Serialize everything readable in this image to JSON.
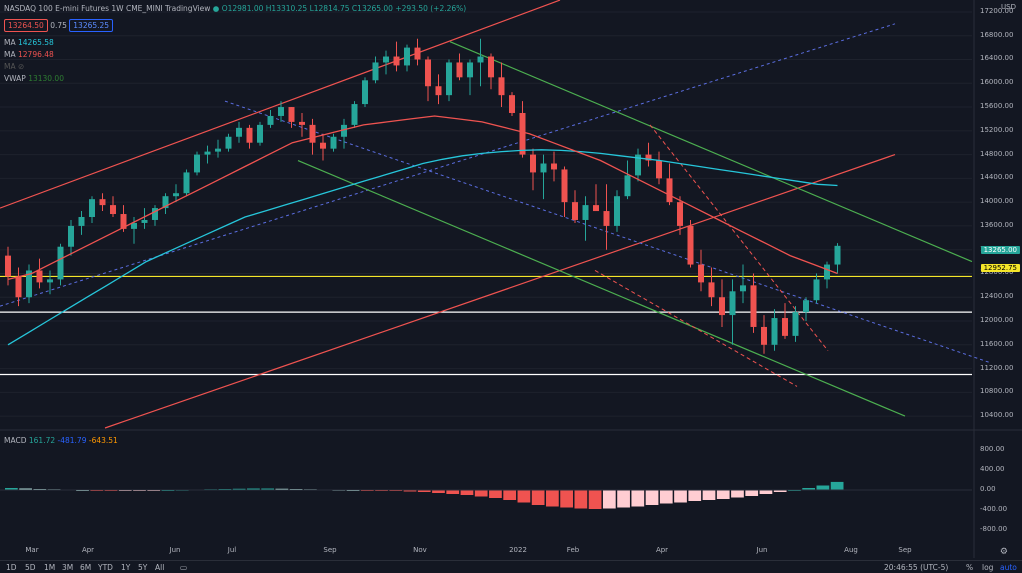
{
  "header": {
    "symbol": "NASDAQ 100 E-mini Futures",
    "interval": "1W",
    "exchange": "CME_MINI",
    "source": "TradingView",
    "ohlc": "O12981.00 H13310.25 L12814.75 C13265.00 +293.50 (+2.26%)",
    "bid": "13264.50",
    "spread": "0.75",
    "ask": "13265.25",
    "currency": "USD"
  },
  "indicators": [
    {
      "name": "MA",
      "value": "14265.58",
      "color": "#26c6da"
    },
    {
      "name": "MA",
      "value": "12796.48",
      "color": "#ef5350"
    },
    {
      "name": "MA",
      "value": "",
      "color": "#555"
    },
    {
      "name": "VWAP",
      "value": "13130.00",
      "color": "#4caf50"
    }
  ],
  "macd": {
    "label": "MACD",
    "v1": "161.72",
    "v2": "-481.79",
    "v3": "-643.51"
  },
  "price_axis": [
    "17200.00",
    "16800.00",
    "16400.00",
    "16000.00",
    "15600.00",
    "15200.00",
    "14800.00",
    "14400.00",
    "14000.00",
    "13600.00",
    "13200.00",
    "12800.00",
    "12400.00",
    "12000.00",
    "11600.00",
    "11200.00",
    "10800.00",
    "10400.00"
  ],
  "macd_axis": [
    "800.00",
    "400.00",
    "0.00",
    "-400.00",
    "-800.00"
  ],
  "price_tags": {
    "last": "13265.00",
    "level": "12952.75"
  },
  "time_axis": [
    "Mar",
    "Apr",
    "Jun",
    "Jul",
    "Sep",
    "Nov",
    "2022",
    "Feb",
    "Apr",
    "Jun",
    "Aug",
    "Sep"
  ],
  "toolbar": {
    "timeframes": [
      "1D",
      "5D",
      "1M",
      "3M",
      "6M",
      "YTD",
      "1Y",
      "5Y",
      "All"
    ],
    "clock": "20:46:55 (UTC-5)",
    "percent": "%",
    "log": "log",
    "auto": "auto"
  },
  "colors": {
    "up": "#26a69a",
    "down": "#ef5350",
    "bg": "#131722",
    "grid": "#1e222d"
  },
  "chart_data": {
    "type": "candlestick",
    "series": [
      {
        "name": "candles",
        "values": [
          [
            13100,
            13250,
            12600,
            12750
          ],
          [
            12750,
            12900,
            12250,
            12400
          ],
          [
            12400,
            12950,
            12300,
            12850
          ],
          [
            12850,
            13050,
            12550,
            12650
          ],
          [
            12650,
            12850,
            12450,
            12700
          ],
          [
            12700,
            13300,
            12600,
            13250
          ],
          [
            13250,
            13700,
            13100,
            13600
          ],
          [
            13600,
            13850,
            13450,
            13750
          ],
          [
            13750,
            14100,
            13650,
            14050
          ],
          [
            14050,
            14150,
            13850,
            13950
          ],
          [
            13950,
            14100,
            13750,
            13800
          ],
          [
            13800,
            13950,
            13500,
            13550
          ],
          [
            13550,
            13750,
            13300,
            13650
          ],
          [
            13650,
            13900,
            13550,
            13700
          ],
          [
            13700,
            13950,
            13600,
            13900
          ],
          [
            13900,
            14150,
            13800,
            14100
          ],
          [
            14100,
            14300,
            14000,
            14150
          ],
          [
            14150,
            14550,
            14100,
            14500
          ],
          [
            14500,
            14850,
            14450,
            14800
          ],
          [
            14800,
            14950,
            14650,
            14850
          ],
          [
            14850,
            15050,
            14750,
            14900
          ],
          [
            14900,
            15150,
            14850,
            15100
          ],
          [
            15100,
            15350,
            15000,
            15250
          ],
          [
            15250,
            15300,
            14900,
            15000
          ],
          [
            15000,
            15350,
            14950,
            15300
          ],
          [
            15300,
            15550,
            15250,
            15450
          ],
          [
            15450,
            15700,
            15350,
            15600
          ],
          [
            15600,
            15600,
            15250,
            15350
          ],
          [
            15350,
            15500,
            15100,
            15300
          ],
          [
            15300,
            15400,
            14800,
            15000
          ],
          [
            15000,
            15150,
            14700,
            14900
          ],
          [
            14900,
            15150,
            14850,
            15100
          ],
          [
            15100,
            15400,
            14900,
            15300
          ],
          [
            15300,
            15700,
            15250,
            15650
          ],
          [
            15650,
            16100,
            15600,
            16050
          ],
          [
            16050,
            16450,
            16000,
            16350
          ],
          [
            16350,
            16550,
            16150,
            16450
          ],
          [
            16450,
            16700,
            16200,
            16300
          ],
          [
            16300,
            16650,
            16200,
            16600
          ],
          [
            16600,
            16750,
            16300,
            16400
          ],
          [
            16400,
            16450,
            15700,
            15950
          ],
          [
            15950,
            16150,
            15650,
            15800
          ],
          [
            15800,
            16400,
            15700,
            16350
          ],
          [
            16350,
            16500,
            16050,
            16100
          ],
          [
            16100,
            16400,
            15800,
            16350
          ],
          [
            16350,
            16750,
            15950,
            16450
          ],
          [
            16450,
            16500,
            15900,
            16100
          ],
          [
            16100,
            16350,
            15600,
            15800
          ],
          [
            15800,
            15850,
            15450,
            15500
          ],
          [
            15500,
            15700,
            14750,
            14800
          ],
          [
            14800,
            14900,
            14200,
            14500
          ],
          [
            14500,
            14800,
            14050,
            14650
          ],
          [
            14650,
            14850,
            14350,
            14550
          ],
          [
            14550,
            14600,
            13750,
            14000
          ],
          [
            14000,
            14200,
            13650,
            13700
          ],
          [
            13700,
            14100,
            13350,
            13950
          ],
          [
            13950,
            14300,
            13850,
            13850
          ],
          [
            13850,
            14300,
            13200,
            13600
          ],
          [
            13600,
            14200,
            13500,
            14100
          ],
          [
            14100,
            14700,
            14050,
            14450
          ],
          [
            14450,
            14900,
            14350,
            14800
          ],
          [
            14800,
            15000,
            14600,
            14700
          ],
          [
            14700,
            14850,
            14300,
            14400
          ],
          [
            14400,
            14650,
            13950,
            14000
          ],
          [
            14000,
            14100,
            13450,
            13600
          ],
          [
            13600,
            13700,
            12900,
            12950
          ],
          [
            12950,
            13200,
            12500,
            12650
          ],
          [
            12650,
            12900,
            12250,
            12400
          ],
          [
            12400,
            12700,
            11900,
            12100
          ],
          [
            12100,
            12700,
            11600,
            12500
          ],
          [
            12500,
            12950,
            12300,
            12600
          ],
          [
            12600,
            12800,
            11800,
            11900
          ],
          [
            11900,
            12100,
            11450,
            11600
          ],
          [
            11600,
            12200,
            11500,
            12050
          ],
          [
            12050,
            12300,
            11700,
            11750
          ],
          [
            11750,
            12250,
            11650,
            12150
          ],
          [
            12150,
            12400,
            12000,
            12350
          ],
          [
            12350,
            12800,
            12300,
            12700
          ],
          [
            12700,
            13000,
            12550,
            12950
          ],
          [
            12950,
            13310,
            12800,
            13265
          ]
        ]
      },
      {
        "name": "MA 14265.58",
        "values": [
          11600,
          11800,
          12000,
          12200,
          12400,
          12600,
          12800,
          13000,
          13150,
          13300,
          13450,
          13600,
          13750,
          13850,
          13950,
          14050,
          14150,
          14250,
          14350,
          14450,
          14550,
          14650,
          14720,
          14780,
          14820,
          14850,
          14870,
          14880,
          14870,
          14850,
          14820,
          14780,
          14740,
          14700,
          14650,
          14600,
          14550,
          14500,
          14450,
          14400,
          14350,
          14300,
          14280
        ]
      },
      {
        "name": "MA 12796.48",
        "values": [
          12700,
          12800,
          13000,
          13200,
          13400,
          13600,
          13800,
          14000,
          14200,
          14400,
          14600,
          14800,
          15000,
          15100,
          15200,
          15300,
          15350,
          15400,
          15450,
          15400,
          15350,
          15250,
          15150,
          15000,
          14850,
          14700,
          14500,
          14300,
          14100,
          13900,
          13700,
          13500,
          13300,
          13100,
          12950,
          12800
        ]
      }
    ],
    "macd_histogram": [
      40,
      30,
      20,
      15,
      10,
      0,
      -10,
      -20,
      -15,
      -10,
      -5,
      0,
      5,
      10,
      15,
      20,
      25,
      30,
      30,
      25,
      20,
      15,
      10,
      5,
      0,
      -5,
      -10,
      -20,
      -30,
      -40,
      -60,
      -80,
      -100,
      -130,
      -160,
      -200,
      -250,
      -300,
      -330,
      -350,
      -370,
      -380,
      -370,
      -350,
      -330,
      -300,
      -270,
      -250,
      -220,
      -200,
      -180,
      -150,
      -120,
      -80,
      -40,
      0,
      40,
      90,
      161.72
    ],
    "ylim": [
      10200,
      17300
    ],
    "macd_ylim": [
      -1000,
      1000
    ]
  }
}
